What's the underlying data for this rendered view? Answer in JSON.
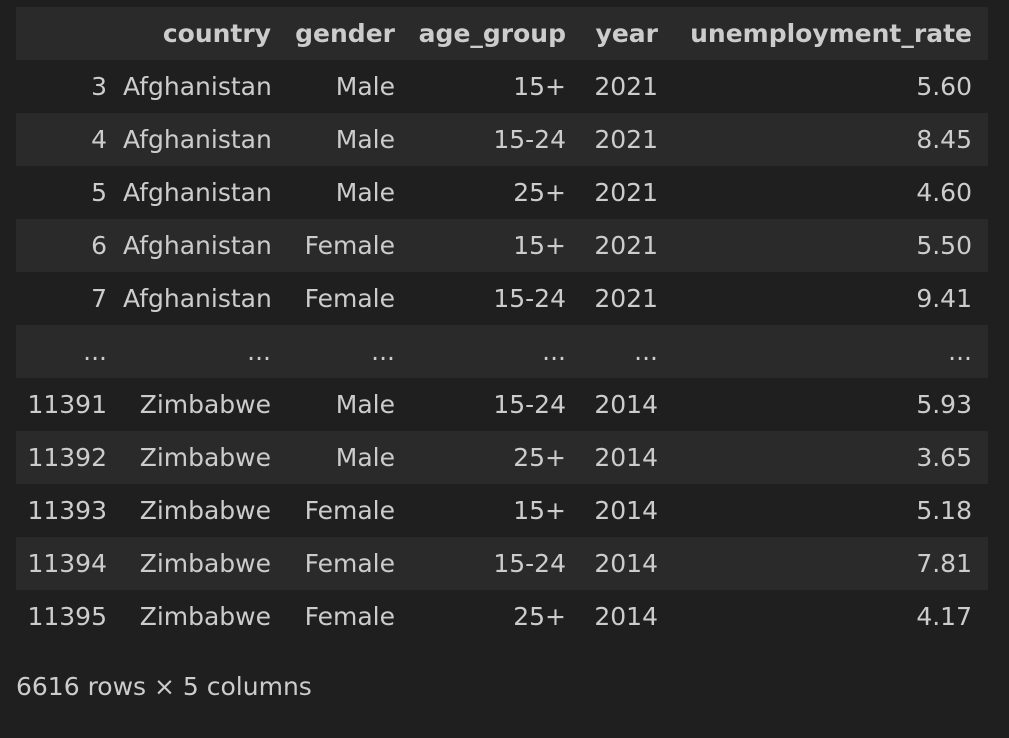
{
  "columns": [
    "",
    "country",
    "gender",
    "age_group",
    "year",
    "unemployment_rate"
  ],
  "rows": [
    [
      "3",
      "Afghanistan",
      "Male",
      "15+",
      "2021",
      "5.60"
    ],
    [
      "4",
      "Afghanistan",
      "Male",
      "15-24",
      "2021",
      "8.45"
    ],
    [
      "5",
      "Afghanistan",
      "Male",
      "25+",
      "2021",
      "4.60"
    ],
    [
      "6",
      "Afghanistan",
      "Female",
      "15+",
      "2021",
      "5.50"
    ],
    [
      "7",
      "Afghanistan",
      "Female",
      "15-24",
      "2021",
      "9.41"
    ],
    [
      "...",
      "...",
      "...",
      "...",
      "...",
      "..."
    ],
    [
      "11391",
      "Zimbabwe",
      "Male",
      "15-24",
      "2014",
      "5.93"
    ],
    [
      "11392",
      "Zimbabwe",
      "Male",
      "25+",
      "2014",
      "3.65"
    ],
    [
      "11393",
      "Zimbabwe",
      "Female",
      "15+",
      "2014",
      "5.18"
    ],
    [
      "11394",
      "Zimbabwe",
      "Female",
      "15-24",
      "2014",
      "7.81"
    ],
    [
      "11395",
      "Zimbabwe",
      "Female",
      "25+",
      "2014",
      "4.17"
    ]
  ],
  "footer": "6616 rows × 5 columns"
}
